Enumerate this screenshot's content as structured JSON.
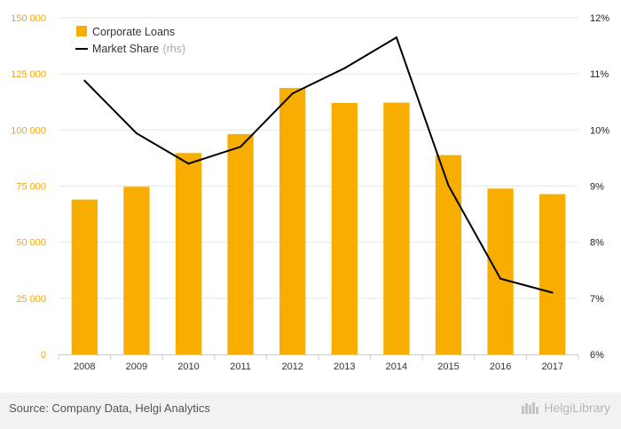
{
  "chart_data": {
    "type": "bar+line",
    "categories": [
      "2008",
      "2009",
      "2010",
      "2011",
      "2012",
      "2013",
      "2014",
      "2015",
      "2016",
      "2017"
    ],
    "series": [
      {
        "name": "Corporate Loans",
        "type": "bar",
        "axis": "left",
        "color": "#f7ae00",
        "values": [
          69000,
          74700,
          89700,
          98200,
          118700,
          112000,
          112200,
          88800,
          73900,
          71400
        ]
      },
      {
        "name": "Market Share",
        "note": "(rhs)",
        "type": "line",
        "axis": "right",
        "color": "#000000",
        "values": [
          10.88,
          9.94,
          9.4,
          9.7,
          10.65,
          11.1,
          11.65,
          9.01,
          7.35,
          7.1
        ]
      }
    ],
    "left_axis": {
      "ylim": [
        0,
        150000
      ],
      "ticks": [
        0,
        25000,
        50000,
        75000,
        100000,
        125000,
        150000
      ],
      "tick_labels": [
        "0",
        "25 000",
        "50 000",
        "75 000",
        "100 000",
        "125 000",
        "150 000"
      ]
    },
    "right_axis": {
      "ylim": [
        6,
        12
      ],
      "ticks": [
        6,
        7,
        8,
        9,
        10,
        11,
        12
      ],
      "tick_labels": [
        "6%",
        "7%",
        "8%",
        "9%",
        "10%",
        "11%",
        "12%"
      ]
    },
    "grid": true,
    "legend_position": "top-left"
  },
  "footer": {
    "source": "Source: Company Data, Helgi Analytics",
    "brand": "HelgiLibrary"
  }
}
